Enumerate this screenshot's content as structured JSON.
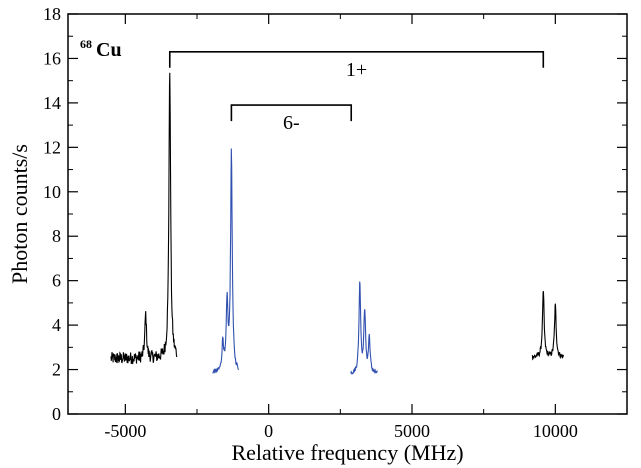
{
  "chart_data": {
    "type": "line",
    "title": "",
    "xlabel": "Relative frequency (MHz)",
    "ylabel": "Photon counts/s",
    "xlim": [
      -7000,
      12500
    ],
    "ylim": [
      0,
      18
    ],
    "x_ticks": [
      -5000,
      0,
      5000,
      10000
    ],
    "x_tick_labels": [
      "-5000",
      "0",
      "5000",
      "10000"
    ],
    "y_ticks": [
      0,
      2,
      4,
      6,
      8,
      10,
      12,
      14,
      16,
      18
    ],
    "y_tick_labels": [
      "0",
      "2",
      "4",
      "6",
      "8",
      "10",
      "12",
      "14",
      "16",
      "18"
    ],
    "grid": false,
    "legend": "none",
    "annotations": {
      "isotope_mass": "68",
      "isotope_symbol": "Cu",
      "state_1_label": "1+",
      "state_1_bracket": [
        -3450,
        9580
      ],
      "state_1_bracket_y": 16.3,
      "state_6_label": "6-",
      "state_6_bracket": [
        -1300,
        2880
      ],
      "state_6_bracket_y": 13.9
    },
    "series": [
      {
        "color": "#000000",
        "segments": [
          {
            "x_range": [
              -5500,
              -3200
            ],
            "baseline": 2.5,
            "noise": 0.28,
            "peaks": [
              {
                "x": -4290,
                "height": 4.5
              },
              {
                "x": -3450,
                "height": 15.5
              }
            ]
          },
          {
            "x_range": [
              9200,
              10300
            ],
            "baseline": 2.55,
            "noise": 0.12,
            "peaks": [
              {
                "x": 9580,
                "height": 5.5
              },
              {
                "x": 10000,
                "height": 4.9
              }
            ]
          }
        ]
      },
      {
        "color": "#3050b0",
        "segments": [
          {
            "x_range": [
              -1950,
              -1050
            ],
            "baseline": 1.85,
            "noise": 0.1,
            "peaks": [
              {
                "x": -1600,
                "height": 3.2
              },
              {
                "x": -1450,
                "height": 4.9
              },
              {
                "x": -1300,
                "height": 11.7
              }
            ]
          },
          {
            "x_range": [
              2850,
              3800
            ],
            "baseline": 1.8,
            "noise": 0.1,
            "peaks": [
              {
                "x": 3180,
                "height": 5.9
              },
              {
                "x": 3350,
                "height": 4.6
              },
              {
                "x": 3510,
                "height": 3.4
              }
            ]
          }
        ]
      }
    ]
  }
}
